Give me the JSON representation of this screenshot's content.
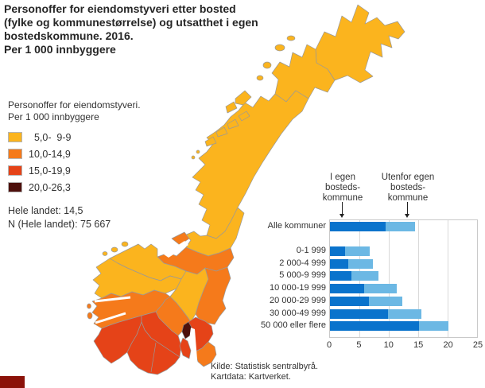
{
  "title": "Personoffer for eiendomstyveri etter bosted\n(fylke og kommunestørrelse) og utsatthet i egen\nbostedskommune. 2016.\nPer 1 000 innbyggere",
  "map_legend": {
    "title": "Personoffer for eiendomstyveri.\nPer 1 000 innbyggere",
    "classes": [
      {
        "label": "  5,0-  9-9",
        "color": "#FBB41E"
      },
      {
        "label": "10,0-14,9",
        "color": "#F57A1B"
      },
      {
        "label": "15,0-19,9",
        "color": "#E54318"
      },
      {
        "label": "20,0-26,3",
        "color": "#4D100C"
      }
    ],
    "national_total": "Hele landet: 14,5",
    "national_n": "N (Hele landet): 75 667"
  },
  "map": {
    "regions": [
      {
        "id": "finnmark",
        "name": "Finnmark",
        "class": 0
      },
      {
        "id": "troms",
        "name": "Troms",
        "class": 0
      },
      {
        "id": "nordland",
        "name": "Nordland",
        "class": 0
      },
      {
        "id": "nord-trondelag",
        "name": "Nord-Trøndelag",
        "class": 0
      },
      {
        "id": "sor-trondelag",
        "name": "Sør-Trøndelag",
        "class": 1
      },
      {
        "id": "more-romsdal",
        "name": "Møre og Romsdal",
        "class": 0
      },
      {
        "id": "sogn-fjordane",
        "name": "Sogn og Fjordane",
        "class": 0
      },
      {
        "id": "oppland",
        "name": "Oppland",
        "class": 0
      },
      {
        "id": "hedmark",
        "name": "Hedmark",
        "class": 1
      },
      {
        "id": "buskerud",
        "name": "Buskerud",
        "class": 1
      },
      {
        "id": "hordaland",
        "name": "Hordaland",
        "class": 1
      },
      {
        "id": "rogaland",
        "name": "Rogaland",
        "class": 2
      },
      {
        "id": "agder",
        "name": "Agder",
        "class": 2
      },
      {
        "id": "telemark",
        "name": "Telemark",
        "class": 2
      },
      {
        "id": "vestfold",
        "name": "Vestfold",
        "class": 2
      },
      {
        "id": "oslo",
        "name": "Oslo",
        "class": 3
      },
      {
        "id": "akershus",
        "name": "Akershus",
        "class": 2
      },
      {
        "id": "ostfold",
        "name": "Østfold",
        "class": 1
      }
    ]
  },
  "chart_data": {
    "type": "bar",
    "orientation": "horizontal",
    "stacked": true,
    "grid": true,
    "categories": [
      "Alle kommuner",
      "0-1 999",
      "2 000-4 999",
      "5 000-9 999",
      "10 000-19 999",
      "20 000-29 999",
      "30 000-49 999",
      "50 000 eller flere"
    ],
    "series": [
      {
        "name": "I egen bostedskommune",
        "color": "#0A73CC",
        "values": [
          9.5,
          2.6,
          3.1,
          3.6,
          5.8,
          6.6,
          9.9,
          15.1
        ]
      },
      {
        "name": "Utenfor egen bostedskommune",
        "color": "#6CB8E4",
        "values": [
          5.0,
          4.2,
          4.2,
          4.6,
          5.6,
          5.7,
          5.6,
          5.1
        ]
      }
    ],
    "xlim": [
      0,
      25
    ],
    "xticks": [
      0,
      5,
      10,
      15,
      20,
      25
    ],
    "annotations": [
      {
        "text": "I egen\nbosteds-\nkommune"
      },
      {
        "text": "Utenfor egen\nbosteds-\nkommune"
      }
    ]
  },
  "source": "Kilde: Statistisk sentralbyrå.\nKartdata: Kartverket.",
  "branding": {
    "corner_color": "#8B1209"
  }
}
